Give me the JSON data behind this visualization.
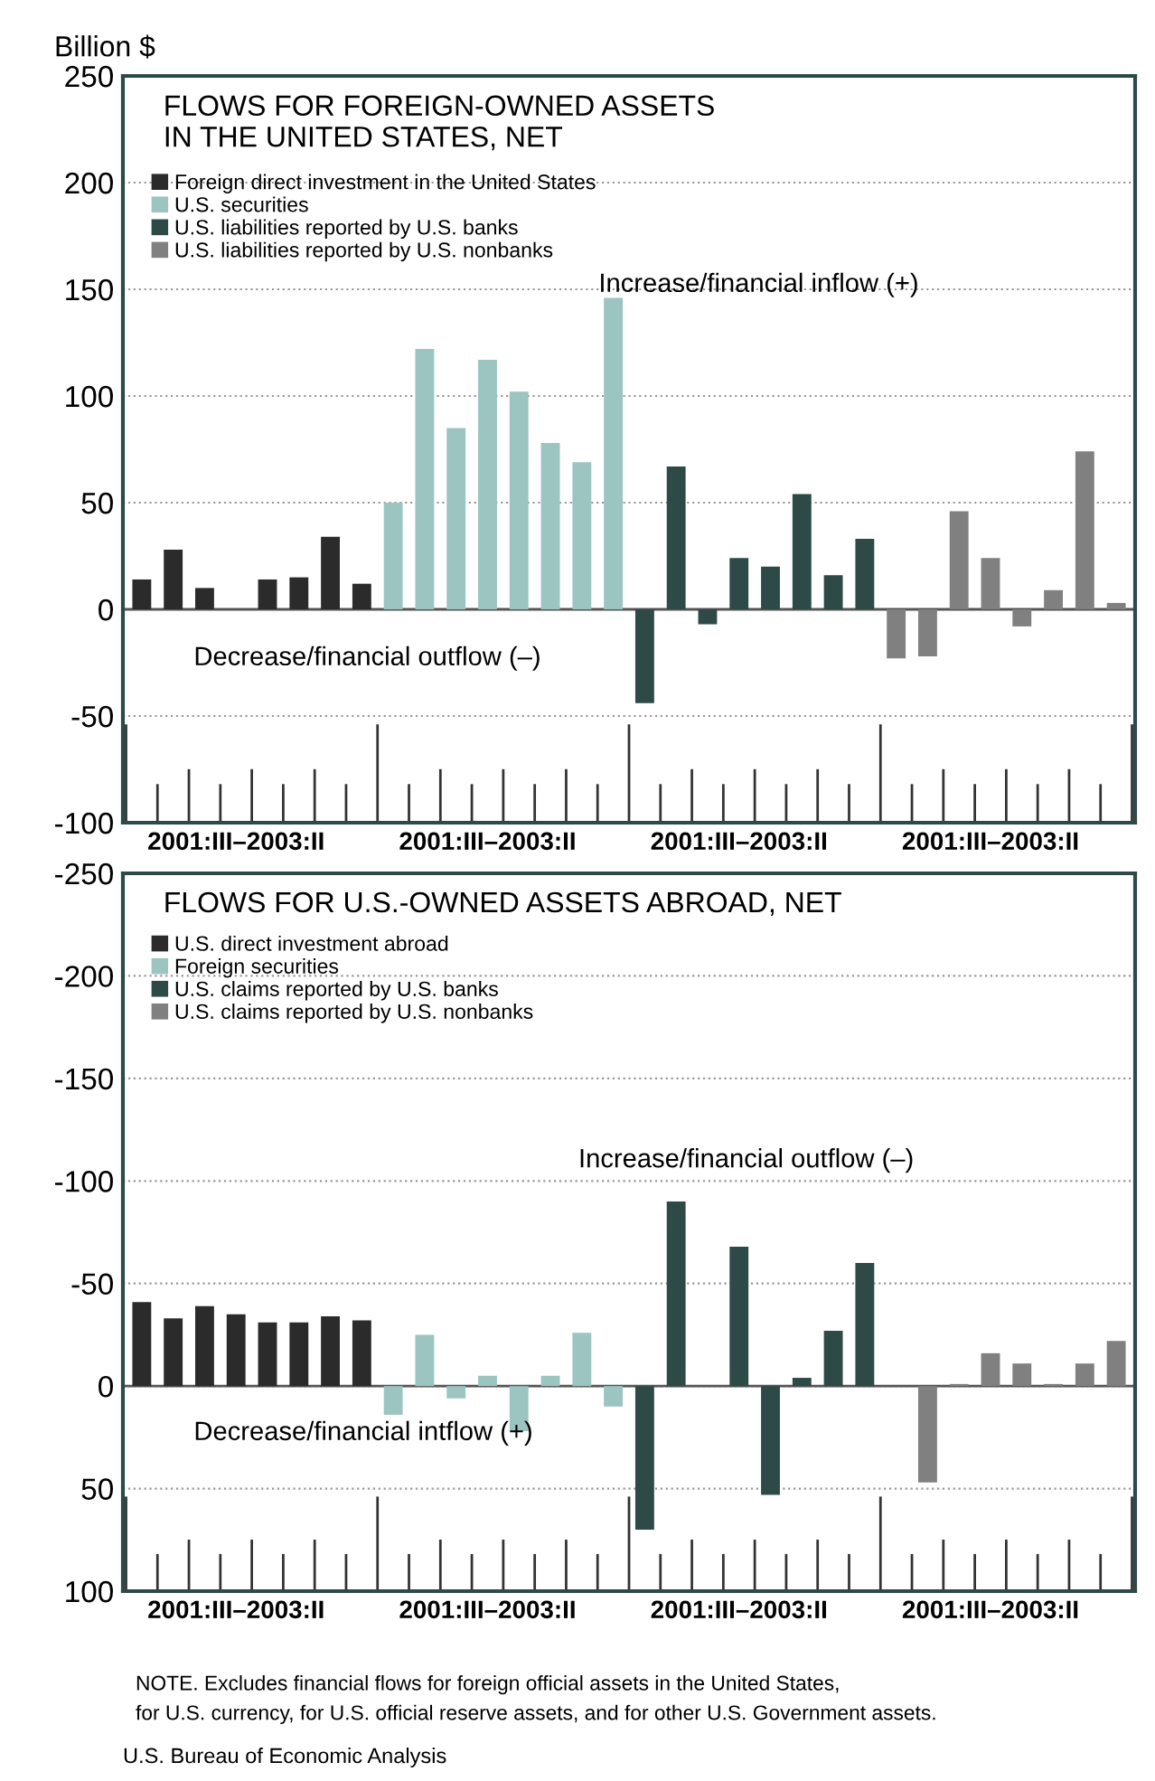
{
  "chart_data": [
    {
      "type": "bar",
      "title": "FLOWS FOR FOREIGN-OWNED ASSETS\nIN THE UNITED STATES, NET",
      "ylabel": "Billion $",
      "categories": [
        null,
        null,
        null,
        "2001:III–2003:II",
        null,
        null,
        null,
        null,
        null,
        null,
        null,
        "2001:III–2003:II",
        null,
        null,
        null,
        null,
        null,
        null,
        null,
        "2001:III–2003:II",
        null,
        null,
        null,
        null,
        null,
        null,
        null,
        "2001:III–2003:II",
        null,
        null,
        null,
        null
      ],
      "series": [
        {
          "name": "Foreign direct investment in the United States",
          "color": "#2b2b2b",
          "values": [
            14,
            28,
            10,
            0,
            14,
            15,
            34,
            12,
            null,
            null,
            null,
            null,
            null,
            null,
            null,
            null,
            null,
            null,
            null,
            null,
            null,
            null,
            null,
            null,
            null,
            null,
            null,
            null,
            null,
            null,
            null,
            null
          ]
        },
        {
          "name": "U.S. securities",
          "color": "#9cc4c0",
          "values": [
            null,
            null,
            null,
            null,
            null,
            null,
            null,
            null,
            50,
            122,
            85,
            117,
            102,
            78,
            69,
            146,
            null,
            null,
            null,
            null,
            null,
            null,
            null,
            null,
            null,
            null,
            null,
            null,
            null,
            null,
            null,
            null
          ]
        },
        {
          "name": "U.S. liabilities reported by U.S. banks",
          "color": "#2d4a47",
          "values": [
            null,
            null,
            null,
            null,
            null,
            null,
            null,
            null,
            null,
            null,
            null,
            null,
            null,
            null,
            null,
            null,
            -44,
            67,
            -7,
            24,
            20,
            54,
            16,
            33,
            null,
            null,
            null,
            null,
            null,
            null,
            null,
            null
          ]
        },
        {
          "name": "U.S. liabilities reported by U.S. nonbanks",
          "color": "#808080",
          "values": [
            null,
            null,
            null,
            null,
            null,
            null,
            null,
            null,
            null,
            null,
            null,
            null,
            null,
            null,
            null,
            null,
            null,
            null,
            null,
            null,
            null,
            null,
            null,
            null,
            -23,
            -22,
            46,
            24,
            -8,
            9,
            74,
            3
          ]
        }
      ],
      "ylim": [
        -100,
        250
      ],
      "yticks": [
        -100,
        -50,
        0,
        50,
        100,
        150,
        200,
        250
      ],
      "grid": "y",
      "legend": "top left",
      "annotations": [
        "Increase/financial inflow (+)",
        "Decrease/financial outflow (–)"
      ]
    },
    {
      "type": "bar",
      "title": "FLOWS FOR U.S.-OWNED ASSETS ABROAD, NET",
      "categories": [
        null,
        null,
        null,
        "2001:III–2003:II",
        null,
        null,
        null,
        null,
        null,
        null,
        null,
        "2001:III–2003:II",
        null,
        null,
        null,
        null,
        null,
        null,
        null,
        "2001:III–2003:II",
        null,
        null,
        null,
        null,
        null,
        null,
        null,
        "2001:III–2003:II",
        null,
        null,
        null,
        null
      ],
      "series": [
        {
          "name": "U.S. direct investment abroad",
          "color": "#2b2b2b",
          "values": [
            -41,
            -33,
            -39,
            -35,
            -31,
            -31,
            -34,
            -32,
            null,
            null,
            null,
            null,
            null,
            null,
            null,
            null,
            null,
            null,
            null,
            null,
            null,
            null,
            null,
            null,
            null,
            null,
            null,
            null,
            null,
            null,
            null,
            null
          ]
        },
        {
          "name": "Foreign securities",
          "color": "#9cc4c0",
          "values": [
            null,
            null,
            null,
            null,
            null,
            null,
            null,
            null,
            14,
            -25,
            6,
            -5,
            22,
            -5,
            -26,
            10,
            null,
            null,
            null,
            null,
            null,
            null,
            null,
            null,
            null,
            null,
            null,
            null,
            null,
            null,
            null,
            null
          ]
        },
        {
          "name": "U.S. claims reported by U.S. banks",
          "color": "#2d4a47",
          "values": [
            null,
            null,
            null,
            null,
            null,
            null,
            null,
            null,
            null,
            null,
            null,
            null,
            null,
            null,
            null,
            null,
            70,
            -90,
            0,
            -68,
            53,
            -4,
            -27,
            -60,
            null,
            null,
            null,
            null,
            null,
            null,
            null,
            null
          ]
        },
        {
          "name": "U.S. claims reported by U.S. nonbanks",
          "color": "#808080",
          "values": [
            null,
            null,
            null,
            null,
            null,
            null,
            null,
            null,
            null,
            null,
            null,
            null,
            null,
            null,
            null,
            null,
            null,
            null,
            null,
            null,
            null,
            null,
            null,
            null,
            0,
            47,
            -1,
            -16,
            -11,
            -1,
            -11,
            -22
          ]
        }
      ],
      "ylim": [
        100,
        -250
      ],
      "yticks": [
        -250,
        -200,
        -150,
        -100,
        -50,
        0,
        50,
        100
      ],
      "grid": "y",
      "legend": "top left",
      "annotations": [
        "Increase/financial outflow (–)",
        "Decrease/financial intflow (+)",
        "NOTE. Excludes financial flows for foreign official assets in the United States,\nfor U.S. currency, for U.S. official reserve assets, and for other U.S. Government assets.",
        "U.S. Bureau of Economic Analysis"
      ]
    }
  ]
}
